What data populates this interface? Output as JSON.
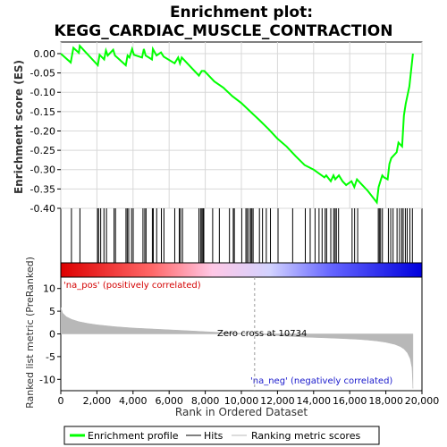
{
  "chart_data": {
    "title_line1": "Enrichment plot:",
    "title_line2": "KEGG_CARDIAC_MUSCLE_CONTRACTION",
    "panels": [
      {
        "type": "line",
        "ylabel": "Enrichment score (ES)",
        "ylim": [
          -0.4,
          0.03
        ],
        "yticks": [
          0.0,
          -0.05,
          -0.1,
          -0.15,
          -0.2,
          -0.25,
          -0.3,
          -0.35,
          -0.4
        ],
        "ytick_labels": [
          "0.00",
          "-0.05",
          "-0.10",
          "-0.15",
          "-0.20",
          "-0.25",
          "-0.30",
          "-0.35",
          "-0.40"
        ],
        "grid": true,
        "series": [
          {
            "color": "#00ff00",
            "x": [
              0,
              550,
              700,
              1000,
              1050,
              2050,
              2150,
              2400,
              2500,
              2600,
              2900,
              3000,
              3600,
              3700,
              3800,
              3950,
              4050,
              4500,
              4600,
              4700,
              5050,
              5100,
              5300,
              5550,
              5700,
              6300,
              6500,
              6600,
              6700,
              7650,
              7800,
              7950,
              8500,
              9000,
              9500,
              10000,
              10500,
              11000,
              11500,
              12000,
              12500,
              13000,
              13500,
              14000,
              14600,
              14700,
              14950,
              15100,
              15200,
              15400,
              15600,
              15800,
              16100,
              16250,
              16400,
              16600,
              17000,
              17500,
              17600,
              17700,
              17800,
              17900,
              18100,
              18200,
              18300,
              18600,
              18700,
              18900,
              19000,
              19100,
              19300,
              19500
            ],
            "y": [
              0.0,
              -0.023,
              0.015,
              0.002,
              0.02,
              -0.03,
              -0.003,
              -0.015,
              0.008,
              -0.005,
              0.01,
              -0.005,
              -0.03,
              -0.005,
              -0.01,
              0.012,
              -0.003,
              -0.01,
              0.012,
              -0.005,
              -0.015,
              0.012,
              -0.005,
              0.003,
              -0.008,
              -0.025,
              -0.01,
              -0.025,
              -0.01,
              -0.057,
              -0.045,
              -0.045,
              -0.072,
              -0.088,
              -0.11,
              -0.128,
              -0.15,
              -0.172,
              -0.195,
              -0.22,
              -0.24,
              -0.265,
              -0.288,
              -0.3,
              -0.32,
              -0.315,
              -0.33,
              -0.315,
              -0.325,
              -0.315,
              -0.33,
              -0.34,
              -0.33,
              -0.345,
              -0.325,
              -0.335,
              -0.355,
              -0.385,
              -0.345,
              -0.33,
              -0.315,
              -0.32,
              -0.325,
              -0.285,
              -0.27,
              -0.255,
              -0.23,
              -0.24,
              -0.16,
              -0.13,
              -0.085,
              0.0
            ]
          }
        ]
      },
      {
        "type": "hits",
        "x_range": [
          0,
          20000
        ],
        "positions": [
          590,
          1060,
          2030,
          2090,
          2210,
          2390,
          2530,
          2950,
          3030,
          3610,
          3680,
          3760,
          3920,
          4010,
          4550,
          4650,
          4720,
          5070,
          5120,
          5310,
          5570,
          5710,
          6310,
          6560,
          6630,
          6740,
          7650,
          7740,
          7810,
          7870,
          7920,
          8410,
          8780,
          9340,
          9550,
          9610,
          10020,
          10250,
          10320,
          10420,
          10520,
          10580,
          10650,
          11000,
          11170,
          11380,
          11610,
          12030,
          12840,
          13540,
          13810,
          14080,
          14300,
          14470,
          14640,
          14720,
          14950,
          15110,
          15190,
          15260,
          15380,
          16130,
          16270,
          16440,
          17580,
          17640,
          17710,
          17810,
          18140,
          18270,
          18400,
          18620,
          18760,
          18880,
          18960,
          19080,
          19180,
          19330,
          19470
        ]
      },
      {
        "type": "gradient",
        "stops": [
          "#dd0000",
          "#ff6666",
          "#ffc8e6",
          "#d2d2ff",
          "#6464ff",
          "#0000dd"
        ]
      },
      {
        "type": "area",
        "ylabel": "Ranked list metric (PreRanked)",
        "xlabel": "Rank in Ordered Dataset",
        "xlim": [
          0,
          20000
        ],
        "ylim": [
          -12.5,
          12.5
        ],
        "xticks": [
          0,
          2000,
          4000,
          6000,
          8000,
          10000,
          12000,
          14000,
          16000,
          18000,
          20000
        ],
        "xtick_labels": [
          "0",
          "2,000",
          "4,000",
          "6,000",
          "8,000",
          "10,000",
          "12,000",
          "14,000",
          "16,000",
          "18,000",
          "20,000"
        ],
        "yticks": [
          10,
          5,
          0,
          -5,
          -10
        ],
        "ytick_labels": [
          "10",
          "5",
          "0",
          "-5",
          "-10"
        ],
        "series": [
          {
            "color": "#b8b8b8",
            "x": [
              0,
              100,
              300,
              600,
              1000,
              1500,
              2000,
              3000,
              4000,
              5000,
              6000,
              7000,
              8000,
              9000,
              10000,
              10734,
              11500,
              12500,
              13500,
              14500,
              15500,
              16500,
              17000,
              17500,
              18000,
              18500,
              18800,
              19000,
              19200,
              19350,
              19450,
              19500
            ],
            "y": [
              5.8,
              4.6,
              3.8,
              3.2,
              2.7,
              2.3,
              2.0,
              1.6,
              1.3,
              1.1,
              0.9,
              0.7,
              0.5,
              0.3,
              0.12,
              0.0,
              -0.25,
              -0.5,
              -0.7,
              -0.85,
              -1.0,
              -1.2,
              -1.35,
              -1.55,
              -1.85,
              -2.3,
              -2.8,
              -3.3,
              -4.2,
              -5.5,
              -7.5,
              -12.0
            ]
          }
        ],
        "annotations": {
          "pos_label": "'na_pos' (positively correlated)",
          "neg_label": "'na_neg' (negatively correlated)",
          "zero_cross_label": "Zero cross at 10734",
          "zero_cross_x": 10734
        }
      }
    ],
    "legend": {
      "placement": "bottom",
      "items": [
        {
          "label": "Enrichment profile",
          "color": "#00ff00",
          "kind": "line-thick"
        },
        {
          "label": "Hits",
          "color": "#000000",
          "kind": "line-thin"
        },
        {
          "label": "Ranking metric scores",
          "color": "#b8b8b8",
          "kind": "line-thin"
        }
      ]
    }
  }
}
